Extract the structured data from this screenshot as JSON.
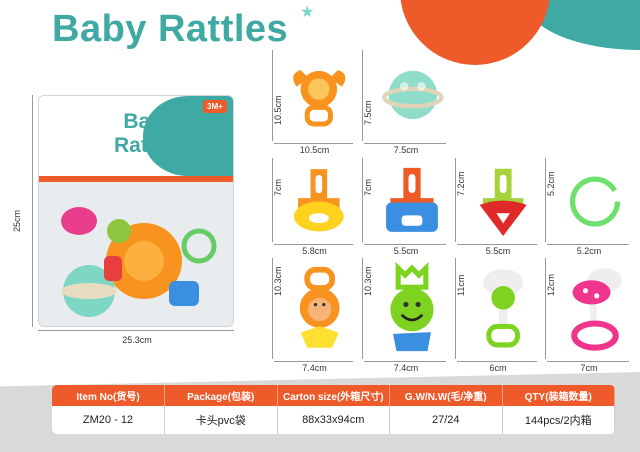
{
  "title": "Baby Rattles",
  "package": {
    "logo": "Baby Rattles",
    "age_badge": "3M+",
    "height": "25cm",
    "width": "25.3cm"
  },
  "items": [
    {
      "name": "crab-rattle",
      "height": "10.5cm",
      "width": "10.5cm"
    },
    {
      "name": "ball-rattle",
      "height": "7.5cm",
      "width": "7.5cm"
    },
    {
      "name": "yellow-teether",
      "height": "7cm",
      "width": "5.8cm"
    },
    {
      "name": "blue-teether",
      "height": "7cm",
      "width": "5.5cm"
    },
    {
      "name": "heart-teether",
      "height": "7.2cm",
      "width": "5.5cm"
    },
    {
      "name": "green-ring",
      "height": "5.2cm",
      "width": "5.2cm"
    },
    {
      "name": "bear-rattle",
      "height": "10.3cm",
      "width": "7.4cm"
    },
    {
      "name": "cat-rattle",
      "height": "10.3cm",
      "width": "7.4cm"
    },
    {
      "name": "frog-rattle",
      "height": "11cm",
      "width": "6cm"
    },
    {
      "name": "mushroom-rattle",
      "height": "12cm",
      "width": "7cm"
    }
  ],
  "table": {
    "headers": [
      "Item No(货号)",
      "Package(包装)",
      "Carton size(外箱尺寸)",
      "G.W/N.W(毛/净重)",
      "QTY(装箱数量)"
    ],
    "row": [
      "ZM20 - 12",
      "卡头pvc袋",
      "88x33x94cm",
      "27/24",
      "144pcs/2内箱"
    ]
  },
  "colors": {
    "brand_teal": "#3fa9a3",
    "accent_orange": "#ee5a2a"
  }
}
